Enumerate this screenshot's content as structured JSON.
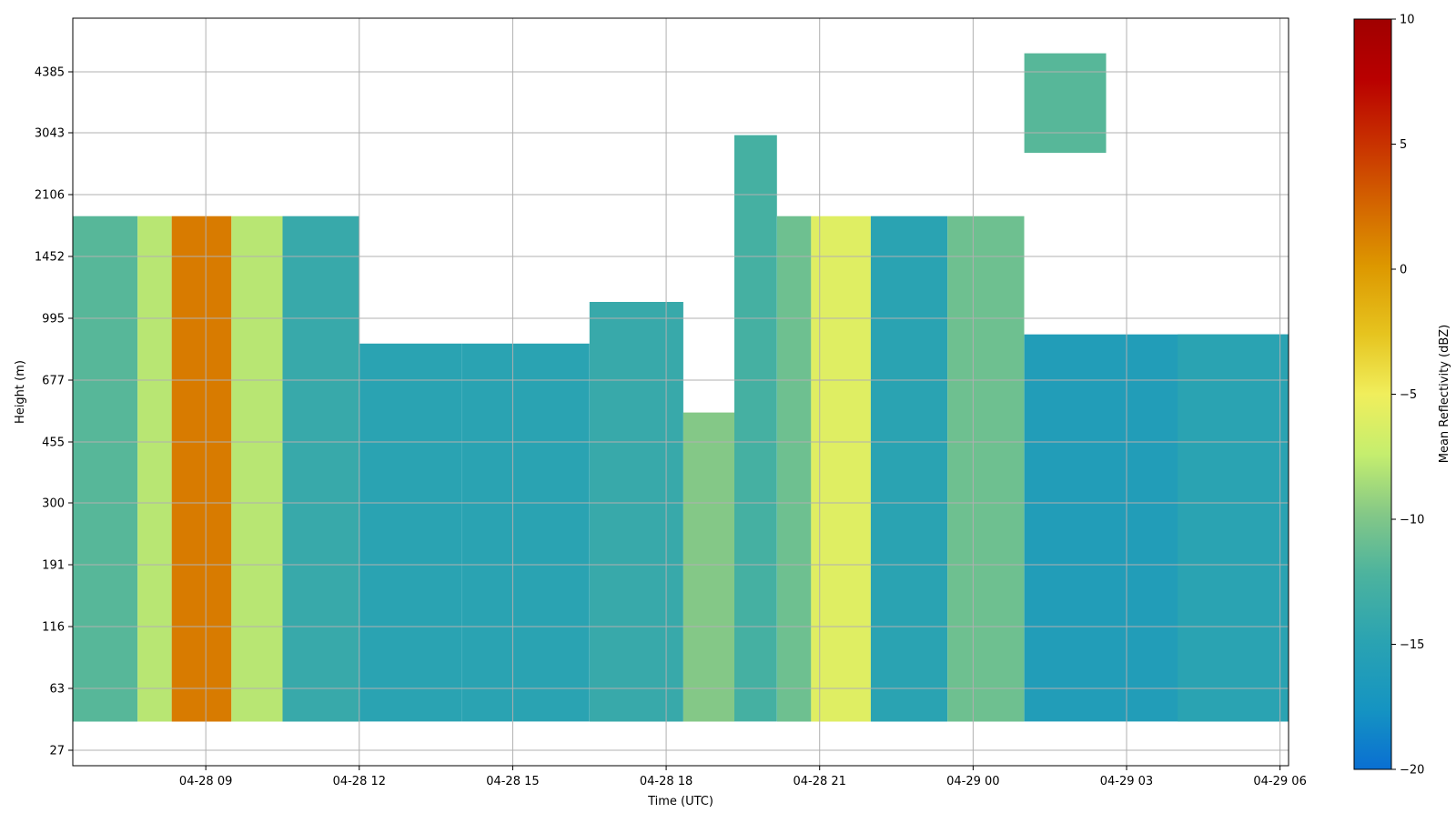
{
  "chart_data": {
    "type": "heatmap",
    "title": "",
    "xlabel": "Time (UTC)",
    "ylabel": "Height (m)",
    "x_axis": {
      "scale": "time",
      "range": [
        "04-28 06:24",
        "04-29 06:10"
      ],
      "ticks": [
        "04-28 09",
        "04-28 12",
        "04-28 15",
        "04-28 18",
        "04-28 21",
        "04-29 00",
        "04-29 03",
        "04-29 06"
      ]
    },
    "y_axis": {
      "scale": "categorical range-gate index (labels in m)",
      "ticks": [
        "27",
        "63",
        "116",
        "191",
        "300",
        "455",
        "677",
        "995",
        "1452",
        "2106",
        "3043",
        "4385"
      ]
    },
    "grid": true,
    "colorbar": {
      "label": "Mean Reflectivity (dBZ)",
      "range": [
        -20,
        10
      ],
      "ticks": [
        "10",
        "5",
        "0",
        "−5",
        "−10",
        "−15",
        "−20"
      ],
      "colormap": [
        "#0a6fd2",
        "#1594c2",
        "#2aa3b2",
        "#4cb39e",
        "#84c887",
        "#c5ee6e",
        "#f0ee5c",
        "#e6c41f",
        "#dd9800",
        "#d46700",
        "#c93400",
        "#b90000",
        "#a00000"
      ]
    },
    "columns": [
      {
        "time": "04-28 06:24",
        "top_m": 1850,
        "bottom_m": 40,
        "dbz": -12
      },
      {
        "time": "04-28 07:40",
        "top_m": 1850,
        "bottom_m": 40,
        "dbz": -8
      },
      {
        "time": "04-28 08:20",
        "top_m": 1850,
        "bottom_m": 40,
        "dbz": 1.5
      },
      {
        "time": "04-28 09:30",
        "top_m": 1850,
        "bottom_m": 40,
        "dbz": -8
      },
      {
        "time": "04-28 10:30",
        "top_m": 1850,
        "bottom_m": 40,
        "dbz": -14
      },
      {
        "time": "04-28 12:00",
        "top_m": 850,
        "bottom_m": 40,
        "dbz": -15
      },
      {
        "time": "04-28 14:00",
        "top_m": 850,
        "bottom_m": 40,
        "dbz": -15
      },
      {
        "time": "04-28 16:30",
        "top_m": 1100,
        "bottom_m": 40,
        "dbz": -14
      },
      {
        "time": "04-28 18:20",
        "top_m": 550,
        "bottom_m": 40,
        "dbz": -10
      },
      {
        "time": "04-28 19:20",
        "top_m": 3000,
        "bottom_m": 40,
        "dbz": -13
      },
      {
        "time": "04-28 20:10",
        "top_m": 1850,
        "bottom_m": 40,
        "dbz": -11
      },
      {
        "time": "04-28 20:50",
        "top_m": 1850,
        "bottom_m": 40,
        "dbz": -6
      },
      {
        "time": "04-28 22:00",
        "top_m": 1850,
        "bottom_m": 40,
        "dbz": -15
      },
      {
        "time": "04-28 23:30",
        "top_m": 1850,
        "bottom_m": 40,
        "dbz": -11
      },
      {
        "time": "04-29 01:00",
        "top_m": 900,
        "bottom_m": 40,
        "dbz": -16
      },
      {
        "time": "04-29 01:00",
        "top_m": 4900,
        "bottom_m": 2700,
        "dbz": -12
      },
      {
        "time": "04-29 04:00",
        "top_m": 900,
        "bottom_m": 40,
        "dbz": -15
      }
    ]
  }
}
